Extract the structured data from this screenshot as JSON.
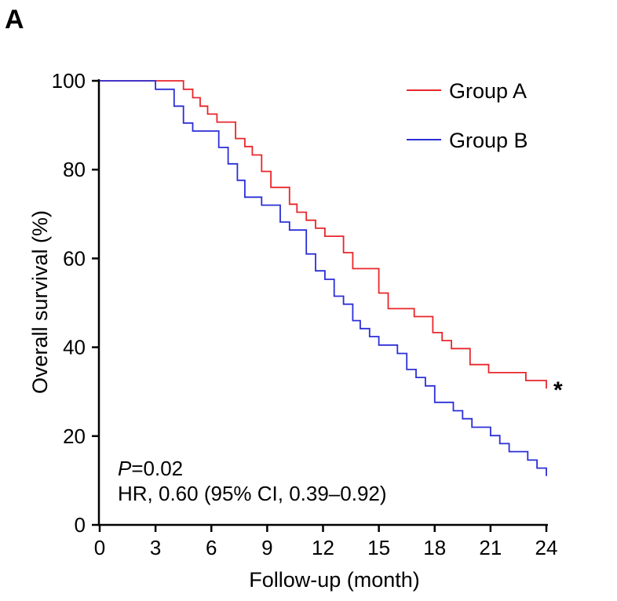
{
  "panel_label": "A",
  "chart_data": {
    "type": "line",
    "step": true,
    "xlabel": "Follow-up (month)",
    "ylabel": "Overall survival (%)",
    "xlim": [
      0,
      24
    ],
    "ylim": [
      0,
      100
    ],
    "x_ticks": [
      0,
      3,
      6,
      9,
      12,
      15,
      18,
      21,
      24
    ],
    "y_ticks": [
      0,
      20,
      40,
      60,
      80,
      100
    ],
    "grid": false,
    "legend_position": "top-right",
    "series": [
      {
        "name": "Group A",
        "color": "#e8262b",
        "points": [
          [
            0,
            100
          ],
          [
            4.5,
            100
          ],
          [
            4.5,
            98.1
          ],
          [
            5.0,
            98.1
          ],
          [
            5.0,
            96.2
          ],
          [
            5.4,
            96.2
          ],
          [
            5.4,
            94.3
          ],
          [
            5.8,
            94.3
          ],
          [
            5.8,
            92.5
          ],
          [
            6.3,
            92.5
          ],
          [
            6.3,
            90.7
          ],
          [
            7.3,
            90.7
          ],
          [
            7.3,
            87.0
          ],
          [
            7.8,
            87.0
          ],
          [
            7.8,
            85.2
          ],
          [
            8.2,
            85.2
          ],
          [
            8.2,
            83.3
          ],
          [
            8.7,
            83.3
          ],
          [
            8.7,
            79.6
          ],
          [
            9.2,
            79.6
          ],
          [
            9.2,
            76.0
          ],
          [
            10.2,
            76.0
          ],
          [
            10.2,
            72.2
          ],
          [
            10.6,
            72.2
          ],
          [
            10.6,
            70.4
          ],
          [
            11.1,
            70.4
          ],
          [
            11.1,
            68.6
          ],
          [
            11.6,
            68.6
          ],
          [
            11.6,
            66.8
          ],
          [
            12.1,
            66.8
          ],
          [
            12.1,
            65.0
          ],
          [
            13.1,
            65.0
          ],
          [
            13.1,
            61.3
          ],
          [
            13.6,
            61.3
          ],
          [
            13.6,
            57.7
          ],
          [
            15.0,
            57.7
          ],
          [
            15.0,
            52.2
          ],
          [
            15.5,
            52.2
          ],
          [
            15.5,
            48.7
          ],
          [
            16.9,
            48.7
          ],
          [
            16.9,
            46.9
          ],
          [
            17.9,
            46.9
          ],
          [
            17.9,
            43.3
          ],
          [
            18.4,
            43.3
          ],
          [
            18.4,
            41.5
          ],
          [
            18.9,
            41.5
          ],
          [
            18.9,
            39.7
          ],
          [
            19.9,
            39.7
          ],
          [
            19.9,
            36.1
          ],
          [
            20.9,
            36.1
          ],
          [
            20.9,
            34.3
          ],
          [
            22.9,
            34.3
          ],
          [
            22.9,
            32.5
          ],
          [
            24.0,
            32.5
          ],
          [
            24.0,
            30.7
          ]
        ]
      },
      {
        "name": "Group B",
        "color": "#2b2fd6",
        "points": [
          [
            0,
            100
          ],
          [
            3.0,
            100
          ],
          [
            3.0,
            98.1
          ],
          [
            4.0,
            98.1
          ],
          [
            4.0,
            94.3
          ],
          [
            4.5,
            94.3
          ],
          [
            4.5,
            90.5
          ],
          [
            5.0,
            90.5
          ],
          [
            5.0,
            88.7
          ],
          [
            6.4,
            88.7
          ],
          [
            6.4,
            85.0
          ],
          [
            6.9,
            85.0
          ],
          [
            6.9,
            81.3
          ],
          [
            7.4,
            81.3
          ],
          [
            7.4,
            77.6
          ],
          [
            7.8,
            77.6
          ],
          [
            7.8,
            73.8
          ],
          [
            8.7,
            73.8
          ],
          [
            8.7,
            72.0
          ],
          [
            9.7,
            72.0
          ],
          [
            9.7,
            68.2
          ],
          [
            10.2,
            68.2
          ],
          [
            10.2,
            66.4
          ],
          [
            11.1,
            66.4
          ],
          [
            11.1,
            61.0
          ],
          [
            11.6,
            61.0
          ],
          [
            11.6,
            57.2
          ],
          [
            12.1,
            57.2
          ],
          [
            12.1,
            55.3
          ],
          [
            12.6,
            55.3
          ],
          [
            12.6,
            51.5
          ],
          [
            13.1,
            51.5
          ],
          [
            13.1,
            49.7
          ],
          [
            13.6,
            49.7
          ],
          [
            13.6,
            46.0
          ],
          [
            14.0,
            46.0
          ],
          [
            14.0,
            44.2
          ],
          [
            14.5,
            44.2
          ],
          [
            14.5,
            42.4
          ],
          [
            15.0,
            42.4
          ],
          [
            15.0,
            40.5
          ],
          [
            16.0,
            40.5
          ],
          [
            16.0,
            38.6
          ],
          [
            16.5,
            38.6
          ],
          [
            16.5,
            35.0
          ],
          [
            17.0,
            35.0
          ],
          [
            17.0,
            33.2
          ],
          [
            17.5,
            33.2
          ],
          [
            17.5,
            31.3
          ],
          [
            18.0,
            31.3
          ],
          [
            18.0,
            27.6
          ],
          [
            19.0,
            27.6
          ],
          [
            19.0,
            25.7
          ],
          [
            19.5,
            25.7
          ],
          [
            19.5,
            23.9
          ],
          [
            20.0,
            23.9
          ],
          [
            20.0,
            22.0
          ],
          [
            21.0,
            22.0
          ],
          [
            21.0,
            20.1
          ],
          [
            21.5,
            20.1
          ],
          [
            21.5,
            18.3
          ],
          [
            22.0,
            18.3
          ],
          [
            22.0,
            16.5
          ],
          [
            23.0,
            16.5
          ],
          [
            23.0,
            14.6
          ],
          [
            23.5,
            14.6
          ],
          [
            23.5,
            12.8
          ],
          [
            24.0,
            12.8
          ],
          [
            24.0,
            11.0
          ]
        ]
      }
    ],
    "annotations": {
      "p_prefix": "P",
      "p_value": "=0.02",
      "hr_text": "HR, 0.60 (95% CI, 0.39–0.92)",
      "significance_marker": "*"
    }
  }
}
